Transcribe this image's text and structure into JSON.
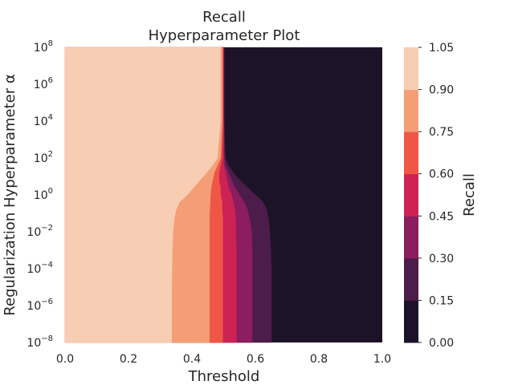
{
  "chart_data": {
    "type": "heatmap",
    "title": "Recall",
    "subtitle": "Hyperparameter Plot",
    "xlabel": "Threshold",
    "ylabel": "Regularization Hyperparameter α",
    "xlim": [
      0.0,
      1.0
    ],
    "ylim_log10": [
      -8,
      8
    ],
    "y_scale": "log",
    "grid": false,
    "x_ticks": [
      "0.0",
      "0.2",
      "0.4",
      "0.6",
      "0.8",
      "1.0"
    ],
    "y_ticks": [
      {
        "base": "10",
        "exp": "8"
      },
      {
        "base": "10",
        "exp": "6"
      },
      {
        "base": "10",
        "exp": "4"
      },
      {
        "base": "10",
        "exp": "2"
      },
      {
        "base": "10",
        "exp": "0"
      },
      {
        "base": "10",
        "exp": "−2"
      },
      {
        "base": "10",
        "exp": "−4"
      },
      {
        "base": "10",
        "exp": "−6"
      },
      {
        "base": "10",
        "exp": "−8"
      }
    ],
    "colorbar": {
      "label": "Recall",
      "levels": [
        "0.00",
        "0.15",
        "0.30",
        "0.45",
        "0.60",
        "0.75",
        "0.90",
        "1.05"
      ],
      "colors": [
        "#1d1329",
        "#4c1c4a",
        "#8c1d5f",
        "#cc2254",
        "#ef5646",
        "#f59e76",
        "#f7cdb3"
      ]
    },
    "contour_boundaries": [
      {
        "name": "recall 0.90 to 1.05 edge",
        "alpha_log10": [
          8,
          4,
          2,
          1.6,
          1.2,
          0.8,
          0.4,
          0,
          -0.4,
          -0.8,
          -1.2,
          -1.6,
          -2,
          -3,
          -4,
          -5,
          -6,
          -7,
          -8
        ],
        "threshold": [
          0.49,
          0.49,
          0.48,
          0.465,
          0.445,
          0.425,
          0.405,
          0.385,
          0.36,
          0.35,
          0.345,
          0.342,
          0.34,
          0.338,
          0.337,
          0.336,
          0.336,
          0.336,
          0.336
        ]
      },
      {
        "name": "recall 0.75 to 0.90 edge",
        "alpha_log10": [
          8,
          4,
          2,
          1.6,
          1.2,
          0.8,
          0.4,
          0,
          -0.4,
          -0.8,
          -1.2,
          -1.6,
          -2,
          -3,
          -4,
          -5,
          -6,
          -7,
          -8
        ],
        "threshold": [
          0.495,
          0.495,
          0.49,
          0.48,
          0.47,
          0.465,
          0.46,
          0.458,
          0.457,
          0.456,
          0.455,
          0.455,
          0.455,
          0.455,
          0.455,
          0.455,
          0.455,
          0.455,
          0.455
        ]
      },
      {
        "name": "recall 0.60 to 0.75 edge",
        "alpha_log10": [
          8,
          4,
          2,
          1.6,
          1.2,
          0.8,
          0.4,
          0,
          -0.4,
          -0.8,
          -1.2,
          -1.6,
          -2,
          -3,
          -4,
          -5,
          -6,
          -7,
          -8
        ],
        "threshold": [
          0.498,
          0.498,
          0.495,
          0.49,
          0.485,
          0.485,
          0.49,
          0.49,
          0.495,
          0.495,
          0.497,
          0.497,
          0.497,
          0.497,
          0.497,
          0.497,
          0.497,
          0.497,
          0.497
        ]
      },
      {
        "name": "recall 0.45 to 0.60 edge",
        "alpha_log10": [
          8,
          4,
          2,
          1.6,
          1.2,
          0.8,
          0.4,
          0,
          -0.4,
          -0.8,
          -1.2,
          -1.6,
          -2,
          -3,
          -4,
          -5,
          -6,
          -7,
          -8
        ],
        "threshold": [
          0.5,
          0.5,
          0.5,
          0.5,
          0.505,
          0.51,
          0.515,
          0.525,
          0.53,
          0.535,
          0.537,
          0.538,
          0.538,
          0.54,
          0.54,
          0.54,
          0.54,
          0.54,
          0.54
        ]
      },
      {
        "name": "recall 0.30 to 0.45 edge",
        "alpha_log10": [
          8,
          4,
          2,
          1.6,
          1.2,
          0.8,
          0.4,
          0,
          -0.4,
          -0.8,
          -1.2,
          -1.6,
          -2,
          -3,
          -4,
          -5,
          -6,
          -7,
          -8
        ],
        "threshold": [
          0.5,
          0.5,
          0.502,
          0.505,
          0.515,
          0.525,
          0.535,
          0.55,
          0.565,
          0.575,
          0.58,
          0.585,
          0.588,
          0.59,
          0.59,
          0.59,
          0.59,
          0.59,
          0.59
        ]
      },
      {
        "name": "recall 0.15 to 0.30 edge",
        "alpha_log10": [
          8,
          4,
          2,
          1.6,
          1.2,
          0.8,
          0.4,
          0,
          -0.4,
          -0.8,
          -1.2,
          -1.6,
          -2,
          -3,
          -4,
          -5,
          -6,
          -7,
          -8
        ],
        "threshold": [
          0.502,
          0.502,
          0.505,
          0.515,
          0.53,
          0.55,
          0.575,
          0.6,
          0.625,
          0.635,
          0.64,
          0.643,
          0.645,
          0.648,
          0.65,
          0.65,
          0.65,
          0.65,
          0.65
        ]
      }
    ]
  }
}
